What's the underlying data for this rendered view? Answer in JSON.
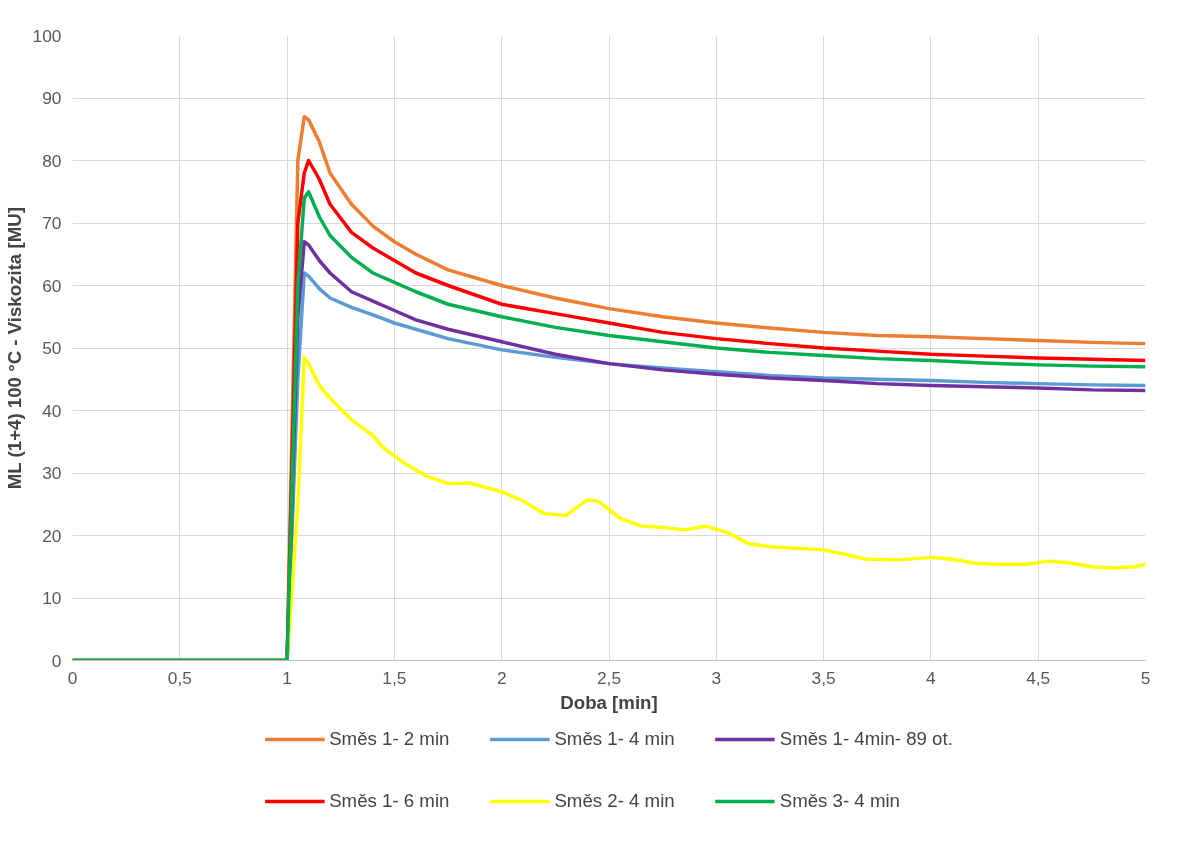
{
  "chart_data": {
    "type": "line",
    "xlabel": "Doba [min]",
    "ylabel": "ML (1+4) 100 °C - Viskozita [MU]",
    "xlim": [
      0,
      5
    ],
    "ylim": [
      0,
      100
    ],
    "xticks": [
      0,
      {
        "value": 0.5,
        "label": "0,5"
      },
      1,
      {
        "value": 1.5,
        "label": "1,5"
      },
      2,
      {
        "value": 2.5,
        "label": "2,5"
      },
      3,
      {
        "value": 3.5,
        "label": "3,5"
      },
      4,
      {
        "value": 4.5,
        "label": "4,5"
      },
      5
    ],
    "yticks": [
      0,
      10,
      20,
      30,
      40,
      50,
      60,
      70,
      80,
      90,
      100
    ],
    "grid": true,
    "legend": "bottom",
    "marker": "none",
    "line_style": "solid",
    "x": [
      0,
      1.0,
      1.05,
      1.08,
      1.1,
      1.15,
      1.2,
      1.3,
      1.4,
      1.5,
      1.6,
      1.75,
      2,
      2.25,
      2.5,
      2.75,
      3,
      3.25,
      3.5,
      3.75,
      4,
      4.25,
      4.5,
      4.75,
      5
    ],
    "series": [
      {
        "name": "Směs 1- 2 min",
        "color": "#ed7d31",
        "values": [
          0,
          0,
          80,
          87,
          86.5,
          83,
          78,
          73,
          69.5,
          67,
          65,
          62.5,
          60,
          58,
          56.3,
          55,
          54,
          53.2,
          52.5,
          52,
          51.8,
          51.5,
          51.2,
          50.9,
          50.7
        ]
      },
      {
        "name": "Směs 1- 4 min",
        "color": "#5b9bd5",
        "values": [
          0,
          0,
          45,
          62,
          61.5,
          59.5,
          58,
          56.5,
          55.3,
          54,
          53,
          51.5,
          49.7,
          48.5,
          47.5,
          46.8,
          46.2,
          45.6,
          45.2,
          45,
          44.8,
          44.5,
          44.3,
          44.1,
          44
        ]
      },
      {
        "name": "Směs 1- 4min- 89 ot.",
        "color": "#7030a0",
        "values": [
          0,
          0,
          55,
          67,
          66.5,
          64,
          62,
          59,
          57.5,
          56,
          54.5,
          53,
          51,
          49,
          47.5,
          46.5,
          45.8,
          45.2,
          44.8,
          44.3,
          44,
          43.8,
          43.6,
          43.3,
          43.2
        ]
      },
      {
        "name": "Směs 1- 6 min",
        "color": "#ff0000",
        "values": [
          0,
          0,
          70,
          78,
          80,
          77,
          73,
          68.5,
          66,
          64,
          62,
          60,
          57,
          55.5,
          54,
          52.5,
          51.5,
          50.7,
          50,
          49.5,
          49,
          48.7,
          48.4,
          48.2,
          48
        ]
      },
      {
        "name": "Směs 2- 4 min",
        "color": "#ffff00",
        "x": [
          0,
          1.0,
          1.05,
          1.08,
          1.1,
          1.15,
          1.2,
          1.3,
          1.4,
          1.45,
          1.55,
          1.65,
          1.75,
          1.85,
          2.0,
          2.1,
          2.2,
          2.3,
          2.35,
          2.4,
          2.45,
          2.55,
          2.65,
          2.75,
          2.85,
          2.95,
          3.05,
          3.15,
          3.25,
          3.35,
          3.5,
          3.6,
          3.7,
          3.85,
          4.0,
          4.1,
          4.2,
          4.3,
          4.45,
          4.55,
          4.65,
          4.75,
          4.85,
          4.95,
          5
        ],
        "values": [
          0,
          0,
          25,
          48.5,
          47.5,
          44,
          42,
          38.5,
          36,
          34,
          31.5,
          29.5,
          28.3,
          28.4,
          27,
          25.5,
          23.5,
          23.2,
          24.5,
          25.7,
          25.5,
          22.8,
          21.5,
          21.3,
          20.9,
          21.5,
          20.5,
          18.7,
          18.2,
          18,
          17.7,
          17,
          16.2,
          16.1,
          16.5,
          16.2,
          15.6,
          15.4,
          15.4,
          15.9,
          15.6,
          15,
          14.8,
          15,
          15.4
        ]
      },
      {
        "name": "Směs 3- 4 min",
        "color": "#00b050",
        "values": [
          0,
          0,
          60,
          74,
          75,
          71,
          68,
          64.5,
          62,
          60.5,
          59,
          57,
          55,
          53.3,
          52,
          51,
          50,
          49.3,
          48.8,
          48.3,
          48,
          47.6,
          47.3,
          47.1,
          47
        ]
      }
    ]
  }
}
